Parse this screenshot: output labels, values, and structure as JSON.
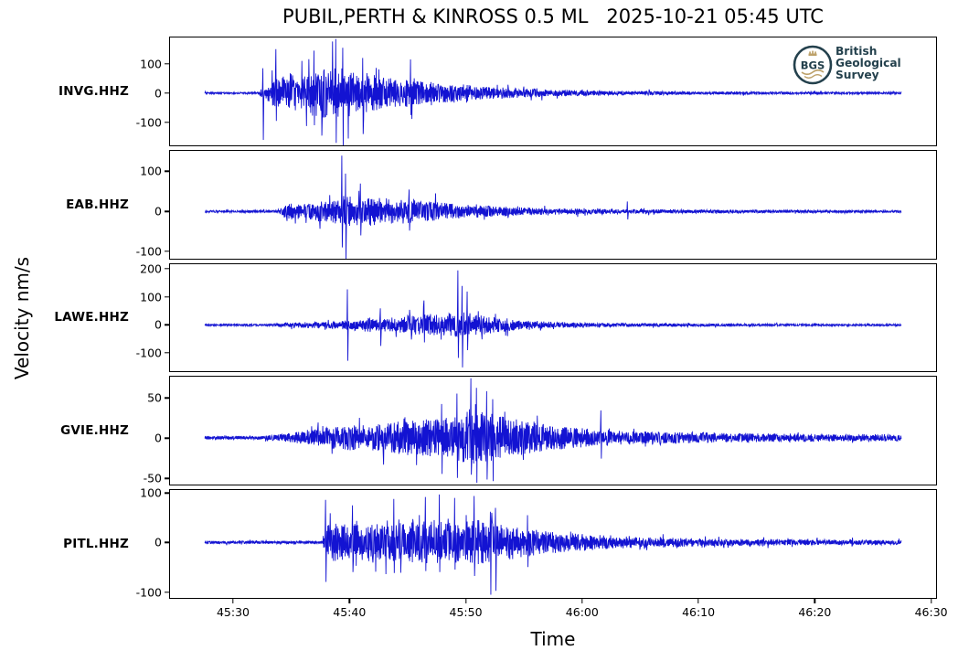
{
  "title": "PUBIL,PERTH & KINROSS 0.5 ML   2025-10-21 05:45 UTC",
  "colors": {
    "trace": "#1313d2",
    "axis": "#000000",
    "logo_dark": "#24414d",
    "logo_gold": "#bda169"
  },
  "logo": {
    "abbr": "BGS",
    "lines": [
      "British",
      "Geological",
      "Survey"
    ]
  },
  "chart_data": {
    "type": "line",
    "title": "PUBIL,PERTH & KINROSS 0.5 ML   2025-10-21 05:45 UTC",
    "xlabel": "Time",
    "ylabel": "Velocity nm/s",
    "x_unit": "seconds after 05:45:00 UTC",
    "xlim": [
      24.5,
      90.5
    ],
    "grid": false,
    "xticks": [
      {
        "t": 30,
        "label": "45:30"
      },
      {
        "t": 40,
        "label": "45:40"
      },
      {
        "t": 50,
        "label": "45:50"
      },
      {
        "t": 60,
        "label": "46:00"
      },
      {
        "t": 70,
        "label": "46:10"
      },
      {
        "t": 80,
        "label": "46:20"
      },
      {
        "t": 90,
        "label": "46:30"
      }
    ],
    "channels": [
      {
        "station": "INVG.HHZ",
        "yticks": [
          100,
          0,
          -100
        ],
        "ylim": [
          -178,
          190
        ],
        "seed": 7,
        "envelope": [
          [
            27.5,
            4
          ],
          [
            32.0,
            4
          ],
          [
            32.6,
            30
          ],
          [
            33.2,
            60
          ],
          [
            34,
            70
          ],
          [
            35,
            95
          ],
          [
            35.8,
            80
          ],
          [
            36.5,
            100
          ],
          [
            37.5,
            115
          ],
          [
            38.5,
            125
          ],
          [
            39.2,
            130
          ],
          [
            40,
            105
          ],
          [
            40.8,
            80
          ],
          [
            41.5,
            95
          ],
          [
            42.5,
            75
          ],
          [
            43.5,
            65
          ],
          [
            44.5,
            60
          ],
          [
            45.5,
            70
          ],
          [
            46.5,
            55
          ],
          [
            47.5,
            50
          ],
          [
            48.5,
            42
          ],
          [
            49.5,
            45
          ],
          [
            50.5,
            35
          ],
          [
            51.5,
            30
          ],
          [
            52.5,
            28
          ],
          [
            54,
            24
          ],
          [
            55.5,
            20
          ],
          [
            57,
            17
          ],
          [
            58.5,
            15
          ],
          [
            60,
            13
          ],
          [
            62,
            11
          ],
          [
            64,
            10
          ],
          [
            66,
            9
          ],
          [
            68,
            8
          ],
          [
            70,
            7
          ],
          [
            73,
            7
          ],
          [
            76,
            6
          ],
          [
            80,
            6
          ],
          [
            84,
            5
          ],
          [
            87.5,
            5
          ]
        ],
        "spikes": [
          [
            32.5,
            85,
            -160
          ],
          [
            33.6,
            150,
            -95
          ],
          [
            36.9,
            145,
            -110
          ],
          [
            38.8,
            185,
            -170
          ],
          [
            39.4,
            155,
            -183
          ],
          [
            41.1,
            120,
            -140
          ],
          [
            45.2,
            115,
            -75
          ]
        ]
      },
      {
        "station": "EAB.HHZ",
        "yticks": [
          100,
          0,
          -100
        ],
        "ylim": [
          -118,
          152
        ],
        "seed": 13,
        "envelope": [
          [
            27.5,
            4
          ],
          [
            33.8,
            4
          ],
          [
            34.3,
            20
          ],
          [
            35,
            28
          ],
          [
            36,
            26
          ],
          [
            37,
            32
          ],
          [
            38,
            36
          ],
          [
            39,
            42
          ],
          [
            39.6,
            55
          ],
          [
            40.2,
            48
          ],
          [
            41,
            45
          ],
          [
            42,
            48
          ],
          [
            43,
            45
          ],
          [
            44,
            42
          ],
          [
            45,
            40
          ],
          [
            46,
            36
          ],
          [
            47,
            32
          ],
          [
            48,
            30
          ],
          [
            49,
            26
          ],
          [
            50,
            24
          ],
          [
            51,
            21
          ],
          [
            52,
            19
          ],
          [
            53,
            17
          ],
          [
            54,
            15
          ],
          [
            55.5,
            13
          ],
          [
            57,
            11
          ],
          [
            58.5,
            10
          ],
          [
            60,
            9
          ],
          [
            62,
            8
          ],
          [
            64,
            8
          ],
          [
            66,
            7
          ],
          [
            68,
            7
          ],
          [
            70,
            6
          ],
          [
            73,
            6
          ],
          [
            76,
            5
          ],
          [
            80,
            5
          ],
          [
            84,
            4
          ],
          [
            87.5,
            4
          ]
        ],
        "spikes": [
          [
            39.3,
            140,
            -90
          ],
          [
            39.6,
            95,
            -120
          ],
          [
            40.9,
            70,
            -60
          ],
          [
            45.1,
            55,
            -48
          ],
          [
            63.9,
            25,
            -20
          ]
        ]
      },
      {
        "station": "LAWE.HHZ",
        "yticks": [
          200,
          100,
          0,
          -100
        ],
        "ylim": [
          -168,
          218
        ],
        "seed": 21,
        "envelope": [
          [
            27.5,
            5
          ],
          [
            33.3,
            5
          ],
          [
            34,
            12
          ],
          [
            35,
            13
          ],
          [
            36,
            14
          ],
          [
            37,
            15
          ],
          [
            38,
            16
          ],
          [
            39,
            18
          ],
          [
            40,
            24
          ],
          [
            41,
            30
          ],
          [
            42,
            36
          ],
          [
            43,
            32
          ],
          [
            44,
            36
          ],
          [
            45,
            42
          ],
          [
            46,
            48
          ],
          [
            46.6,
            58
          ],
          [
            47.2,
            50
          ],
          [
            48,
            48
          ],
          [
            48.8,
            58
          ],
          [
            49.5,
            65
          ],
          [
            50.2,
            58
          ],
          [
            51,
            48
          ],
          [
            52,
            42
          ],
          [
            53,
            32
          ],
          [
            54,
            27
          ],
          [
            55,
            23
          ],
          [
            56,
            20
          ],
          [
            57.5,
            16
          ],
          [
            59,
            13
          ],
          [
            60.5,
            12
          ],
          [
            62,
            11
          ],
          [
            64,
            9
          ],
          [
            66,
            8
          ],
          [
            68,
            8
          ],
          [
            70,
            7
          ],
          [
            73,
            6
          ],
          [
            76,
            6
          ],
          [
            80,
            5
          ],
          [
            84,
            5
          ],
          [
            87.5,
            5
          ]
        ],
        "spikes": [
          [
            39.8,
            128,
            -128
          ],
          [
            42.6,
            60,
            -75
          ],
          [
            46.4,
            88,
            -62
          ],
          [
            49.3,
            196,
            -118
          ],
          [
            49.65,
            140,
            -152
          ],
          [
            50.1,
            120,
            -90
          ]
        ]
      },
      {
        "station": "GVIE.HHZ",
        "yticks": [
          50,
          0,
          -50
        ],
        "ylim": [
          -58,
          76
        ],
        "seed": 33,
        "envelope": [
          [
            27.5,
            3
          ],
          [
            32.5,
            3
          ],
          [
            33.5,
            5
          ],
          [
            34.5,
            7
          ],
          [
            35.5,
            10
          ],
          [
            36.5,
            13
          ],
          [
            37.5,
            16
          ],
          [
            38.5,
            18
          ],
          [
            39.5,
            20
          ],
          [
            40.5,
            21
          ],
          [
            41.5,
            21
          ],
          [
            42.5,
            23
          ],
          [
            43.5,
            26
          ],
          [
            44.5,
            28
          ],
          [
            45.5,
            30
          ],
          [
            46.5,
            31
          ],
          [
            47.5,
            32
          ],
          [
            48.5,
            35
          ],
          [
            49.5,
            40
          ],
          [
            50.3,
            45
          ],
          [
            51,
            42
          ],
          [
            51.7,
            44
          ],
          [
            52.5,
            38
          ],
          [
            53.5,
            34
          ],
          [
            54.5,
            30
          ],
          [
            55.5,
            26
          ],
          [
            56.5,
            23
          ],
          [
            57.5,
            21
          ],
          [
            58.5,
            19
          ],
          [
            59.5,
            17
          ],
          [
            60.5,
            15
          ],
          [
            61.5,
            14
          ],
          [
            63,
            12
          ],
          [
            64.5,
            11
          ],
          [
            66,
            10
          ],
          [
            68,
            9
          ],
          [
            70,
            9
          ],
          [
            72,
            8
          ],
          [
            74,
            8
          ],
          [
            76,
            7
          ],
          [
            78,
            7
          ],
          [
            80,
            7
          ],
          [
            82,
            6
          ],
          [
            84,
            6
          ],
          [
            86,
            6
          ],
          [
            87.5,
            5
          ]
        ],
        "spikes": [
          [
            47.9,
            42,
            -45
          ],
          [
            49.2,
            55,
            -50
          ],
          [
            50.4,
            74,
            -46
          ],
          [
            50.9,
            62,
            -56
          ],
          [
            51.8,
            58,
            -52
          ],
          [
            52.3,
            48,
            -54
          ],
          [
            61.6,
            34,
            -26
          ]
        ]
      },
      {
        "station": "PITL.HHZ",
        "yticks": [
          100,
          0,
          -100
        ],
        "ylim": [
          -112,
          106
        ],
        "seed": 47,
        "envelope": [
          [
            27.5,
            4
          ],
          [
            37.6,
            4
          ],
          [
            38.0,
            45
          ],
          [
            38.4,
            55
          ],
          [
            39,
            50
          ],
          [
            40,
            48
          ],
          [
            41,
            52
          ],
          [
            42,
            55
          ],
          [
            43,
            48
          ],
          [
            44,
            52
          ],
          [
            45,
            55
          ],
          [
            46,
            52
          ],
          [
            46.6,
            60
          ],
          [
            47.4,
            65
          ],
          [
            48,
            58
          ],
          [
            49,
            55
          ],
          [
            50,
            52
          ],
          [
            50.8,
            62
          ],
          [
            51.5,
            58
          ],
          [
            52.3,
            60
          ],
          [
            53,
            50
          ],
          [
            54,
            45
          ],
          [
            55,
            40
          ],
          [
            56,
            35
          ],
          [
            57,
            31
          ],
          [
            58,
            28
          ],
          [
            59,
            25
          ],
          [
            60,
            23
          ],
          [
            61,
            21
          ],
          [
            62,
            19
          ],
          [
            63,
            17
          ],
          [
            64,
            16
          ],
          [
            65.5,
            14
          ],
          [
            67,
            13
          ],
          [
            68.5,
            12
          ],
          [
            70,
            11
          ],
          [
            72,
            10
          ],
          [
            74,
            9
          ],
          [
            76,
            9
          ],
          [
            78,
            8
          ],
          [
            80,
            8
          ],
          [
            82,
            7
          ],
          [
            84,
            7
          ],
          [
            86,
            7
          ],
          [
            87.5,
            6
          ]
        ],
        "spikes": [
          [
            37.9,
            86,
            -80
          ],
          [
            40.2,
            75,
            -60
          ],
          [
            43.8,
            88,
            -62
          ],
          [
            46.5,
            92,
            -58
          ],
          [
            47.7,
            97,
            -60
          ],
          [
            49.0,
            90,
            -55
          ],
          [
            50.7,
            94,
            -68
          ],
          [
            52.1,
            62,
            -106
          ],
          [
            52.55,
            70,
            -98
          ],
          [
            55.3,
            55,
            -50
          ]
        ]
      }
    ]
  }
}
